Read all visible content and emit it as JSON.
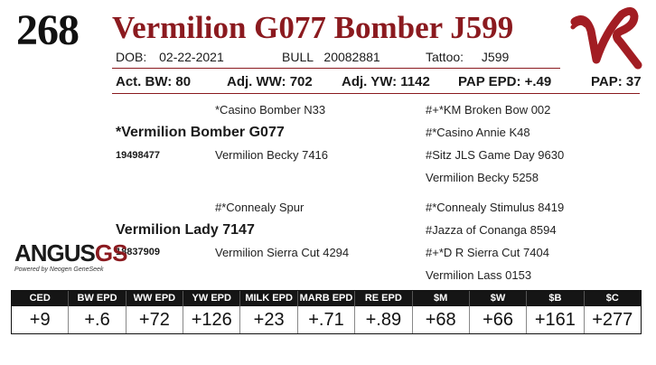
{
  "lot_number": "268",
  "animal_name": "Vermilion G077 Bomber J599",
  "info_row": {
    "dob_label": "DOB:",
    "dob": "02-22-2021",
    "bull_label": "BULL",
    "reg": "20082881",
    "tattoo_label": "Tattoo:",
    "tattoo": "J599"
  },
  "stats_row": {
    "act_bw": "Act. BW: 80",
    "adj_ww": "Adj. WW: 702",
    "adj_yw": "Adj. YW: 1142",
    "pap_epd": "PAP EPD: +.49",
    "pap": "PAP: 37"
  },
  "pedigree": {
    "sire": "*Vermilion Bomber G077",
    "sire_reg": "19498477",
    "sire_sire": "*Casino Bomber N33",
    "sire_dam": "Vermilion Becky 7416",
    "ssg_sire": "#+*KM Broken Bow 002",
    "ssg_dam": "#*Casino Annie K48",
    "sdg_sire": "#Sitz JLS Game Day 9630",
    "sdg_dam": "Vermilion Becky 5258",
    "dam": "Vermilion Lady 7147",
    "dam_reg": "18837909",
    "dam_sire": "#*Connealy Spur",
    "dam_dam": "Vermilion Sierra Cut 4294",
    "dsg_sire": "#*Connealy Stimulus 8419",
    "dsg_dam": "#Jazza of Conanga 8594",
    "ddg_sire": "#+*D R Sierra Cut 7404",
    "ddg_dam": "Vermilion Lass 0153"
  },
  "logo": {
    "main": "ANGUS",
    "accent": "GS",
    "tagline": "Powered by Neogen GeneSeek"
  },
  "brand_mark": "VR",
  "epd_headers": [
    "CED",
    "BW EPD",
    "WW EPD",
    "YW EPD",
    "MILK EPD",
    "MARB EPD",
    "RE EPD",
    "$M",
    "$W",
    "$B",
    "$C"
  ],
  "epd_values": [
    "+9",
    "+.6",
    "+72",
    "+126",
    "+23",
    "+.71",
    "+.89",
    "+68",
    "+66",
    "+161",
    "+277"
  ],
  "colors": {
    "accent": "#8b1a1f",
    "header_bg": "#151515"
  }
}
